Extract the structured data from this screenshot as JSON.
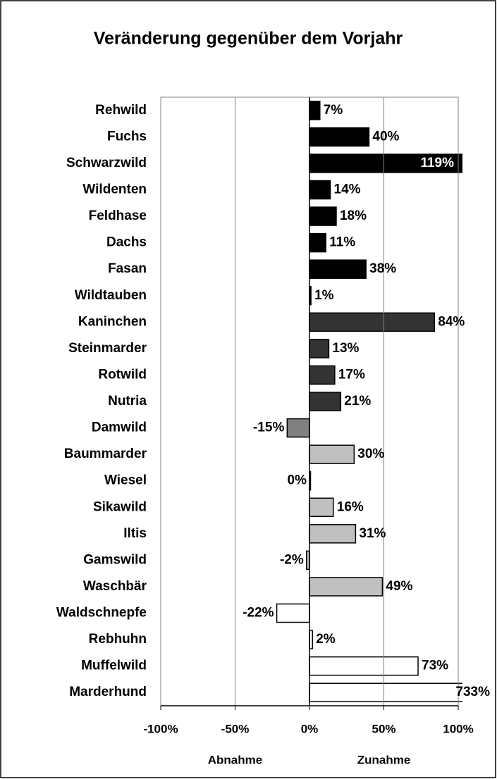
{
  "chart_data": {
    "type": "hbar",
    "title": "Veränderung gegenüber dem Vorjahr",
    "categories": [
      "Rehwild",
      "Fuchs",
      "Schwarzwild",
      "Wildenten",
      "Feldhase",
      "Dachs",
      "Fasan",
      "Wildtauben",
      "Kaninchen",
      "Steinmarder",
      "Rotwild",
      "Nutria",
      "Damwild",
      "Baummarder",
      "Wiesel",
      "Sikawild",
      "Iltis",
      "Gamswild",
      "Waschbär",
      "Waldschnepfe",
      "Rebhuhn",
      "Muffelwild",
      "Marderhund"
    ],
    "values": [
      7,
      40,
      119,
      14,
      18,
      11,
      38,
      1,
      84,
      13,
      17,
      21,
      -15,
      30,
      0,
      16,
      31,
      -2,
      49,
      -22,
      2,
      73,
      733
    ],
    "value_labels": [
      "7%",
      "40%",
      "119%",
      "14%",
      "18%",
      "11%",
      "38%",
      "1%",
      "84%",
      "13%",
      "17%",
      "21%",
      "-15%",
      "30%",
      "0%",
      "16%",
      "31%",
      "-2%",
      "49%",
      "-22%",
      "2%",
      "73%",
      "733%"
    ],
    "colors": [
      "#000000",
      "#000000",
      "#000000",
      "#000000",
      "#000000",
      "#000000",
      "#000000",
      "#000000",
      "#333333",
      "#333333",
      "#333333",
      "#333333",
      "#808080",
      "#c0c0c0",
      "#c0c0c0",
      "#c0c0c0",
      "#c0c0c0",
      "#c0c0c0",
      "#c0c0c0",
      "#ffffff",
      "#ffffff",
      "#ffffff",
      "#ffffff"
    ],
    "xlim": [
      -100,
      100
    ],
    "xticks": [
      {
        "value": -100,
        "label": "-100%"
      },
      {
        "value": -50,
        "label": "-50%"
      },
      {
        "value": 0,
        "label": "0%"
      },
      {
        "value": 50,
        "label": "50%"
      },
      {
        "value": 100,
        "label": "100%"
      }
    ],
    "grid": true,
    "axis_labels": [
      {
        "value": -50,
        "label": "Abnahme"
      },
      {
        "value": 50,
        "label": "Zunahme"
      }
    ]
  }
}
